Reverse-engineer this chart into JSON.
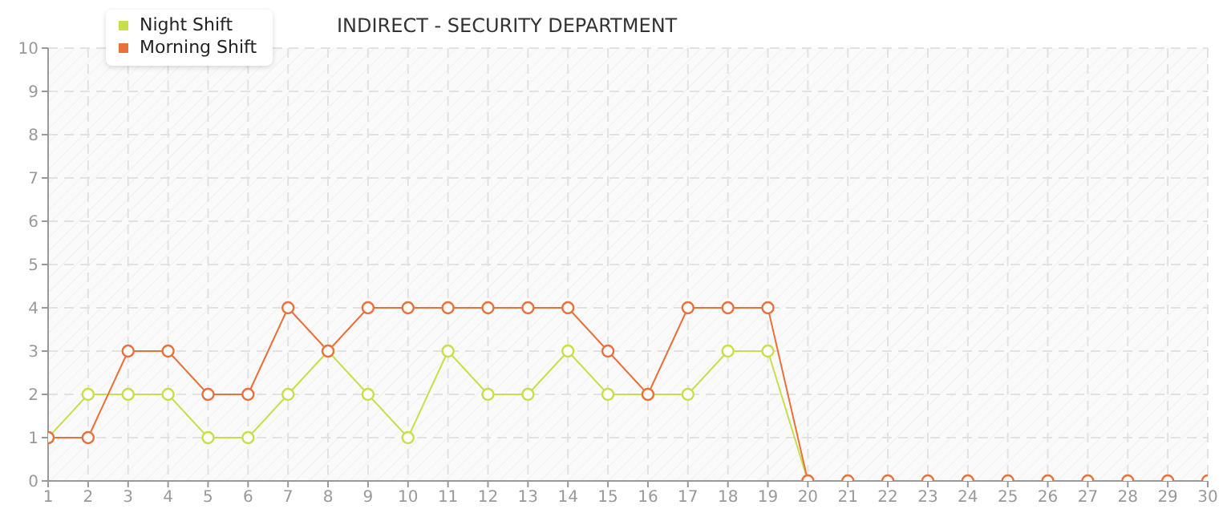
{
  "chart_data": {
    "type": "line",
    "title": "INDIRECT - SECURITY DEPARTMENT",
    "x": [
      1,
      2,
      3,
      4,
      5,
      6,
      7,
      8,
      9,
      10,
      11,
      12,
      13,
      14,
      15,
      16,
      17,
      18,
      19,
      20,
      21,
      22,
      23,
      24,
      25,
      26,
      27,
      28,
      29,
      30
    ],
    "series": [
      {
        "name": "Night Shift",
        "color": "#c5e04a",
        "values": [
          1,
          2,
          2,
          2,
          1,
          1,
          2,
          3,
          2,
          1,
          3,
          2,
          2,
          3,
          2,
          2,
          2,
          3,
          3,
          0,
          null,
          null,
          null,
          null,
          null,
          null,
          null,
          null,
          null,
          null
        ]
      },
      {
        "name": "Morning Shift",
        "color": "#e8703a",
        "values": [
          1,
          1,
          3,
          3,
          2,
          2,
          4,
          3,
          4,
          4,
          4,
          4,
          4,
          4,
          3,
          2,
          4,
          4,
          4,
          0,
          0,
          0,
          0,
          0,
          0,
          0,
          0,
          0,
          0,
          0
        ]
      }
    ],
    "xlim": [
      1,
      30
    ],
    "xticks": [
      1,
      2,
      3,
      4,
      5,
      6,
      7,
      8,
      9,
      10,
      11,
      12,
      13,
      14,
      15,
      16,
      17,
      18,
      19,
      20,
      21,
      22,
      23,
      24,
      25,
      26,
      27,
      28,
      29,
      30
    ],
    "ylim": [
      0,
      10
    ],
    "yticks": [
      0,
      1,
      2,
      3,
      4,
      5,
      6,
      7,
      8,
      9,
      10
    ],
    "grid": true,
    "legend": "top left",
    "marker": "circle",
    "line_style": "solid"
  }
}
